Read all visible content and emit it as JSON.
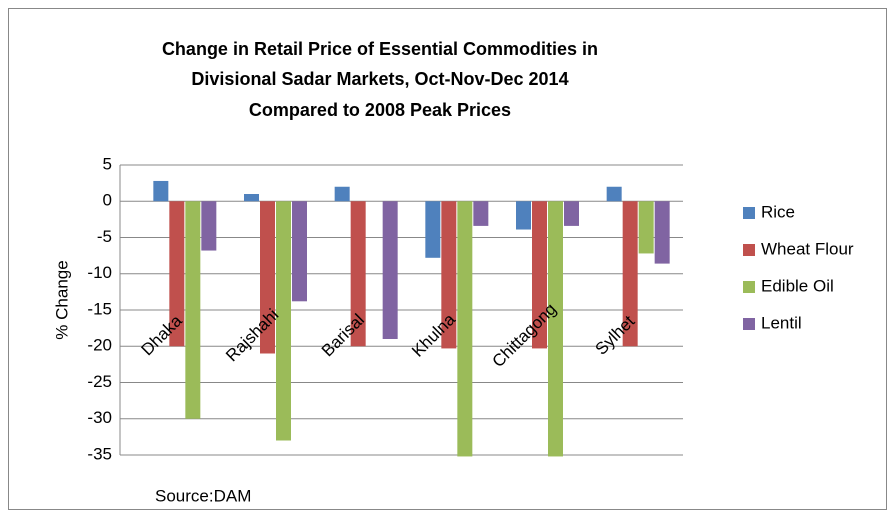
{
  "chart_data": {
    "type": "bar",
    "title": [
      "Change in Retail Price of Essential Commodities in",
      "Divisional Sadar Markets, Oct-Nov-Dec 2014",
      "Compared to 2008 Peak Prices"
    ],
    "y_label": "% Change",
    "source": "Source:DAM",
    "categories": [
      "Dhaka",
      "Rajshahi",
      "Barisal",
      "Khulna",
      "Chittagong",
      "Sylhet"
    ],
    "series": [
      {
        "name": "Rice",
        "color": "#4f81bd",
        "values": [
          2.8,
          1,
          2,
          -7.8,
          -3.9,
          2
        ]
      },
      {
        "name": "Wheat Flour",
        "color": "#c0504d",
        "values": [
          -20,
          -21,
          -20,
          -20.3,
          -20.3,
          -20
        ]
      },
      {
        "name": "Edible Oil",
        "color": "#9bbb59",
        "values": [
          -30,
          -33,
          0,
          -35.2,
          -35.2,
          -7.2
        ]
      },
      {
        "name": "Lentil",
        "color": "#8064a2",
        "values": [
          -6.8,
          -13.8,
          -19,
          -3.4,
          -3.4,
          -8.6
        ]
      }
    ],
    "ylim": [
      -35,
      5
    ],
    "yticks": [
      5,
      0,
      -5,
      -10,
      -15,
      -20,
      -25,
      -30,
      -35
    ],
    "grid": true,
    "legend": "right"
  }
}
